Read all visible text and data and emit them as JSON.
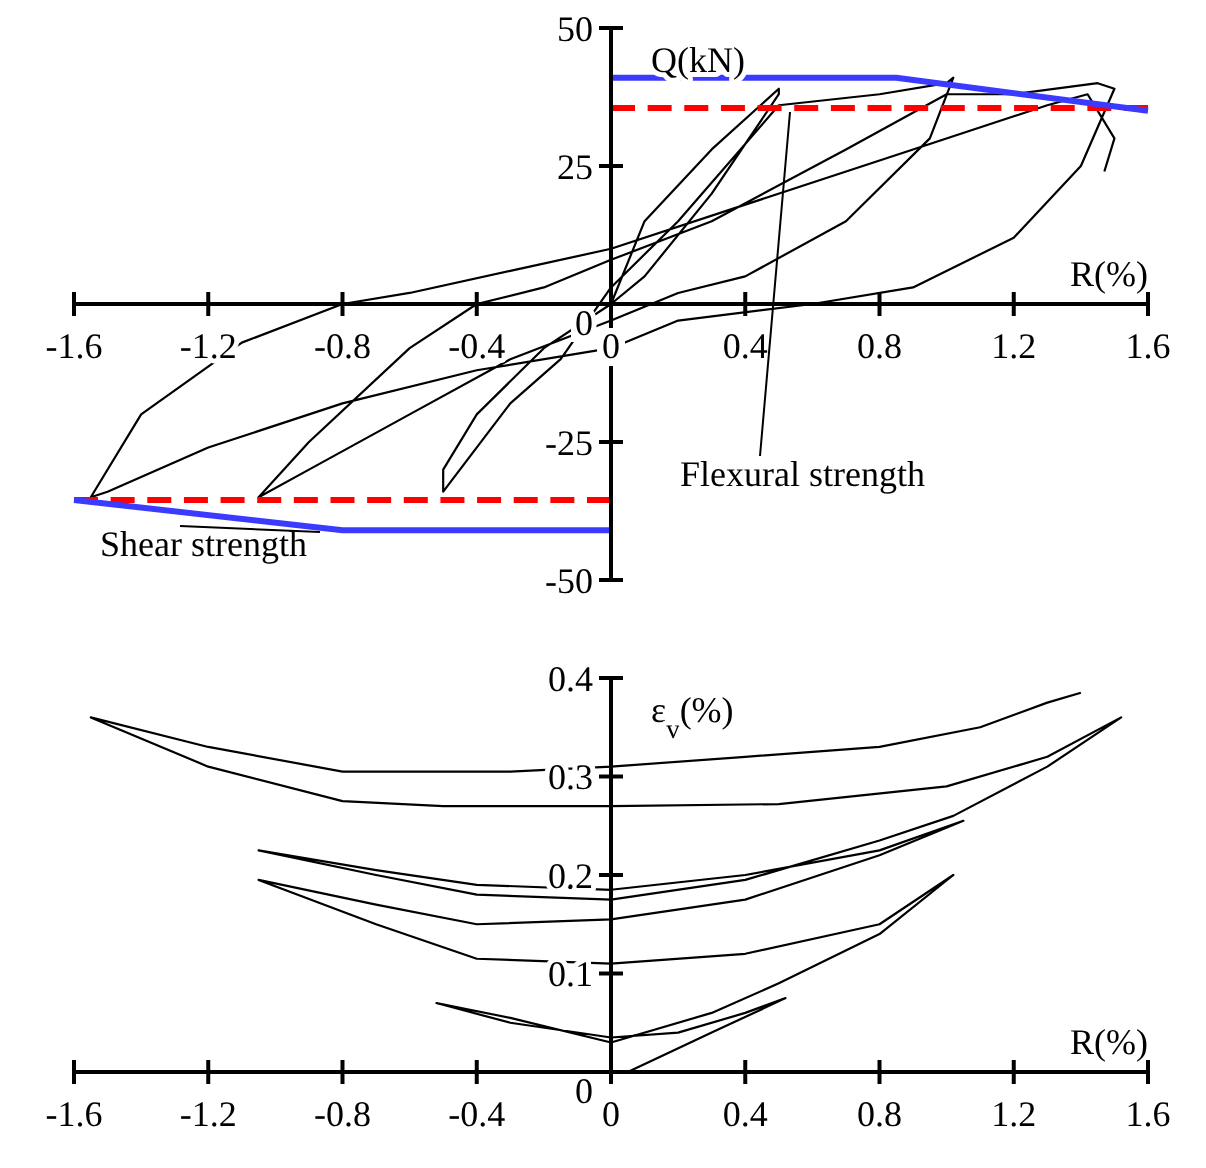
{
  "chart_data": [
    {
      "type": "line",
      "xlabel": "R(%)",
      "ylabel": "Q(kN)",
      "xlim": [
        -1.6,
        1.6
      ],
      "xticks": [
        -1.6,
        -1.2,
        -0.8,
        -0.4,
        0,
        0.4,
        0.8,
        1.2,
        1.6
      ],
      "ylim": [
        -50,
        50
      ],
      "yticks": [
        -50,
        -25,
        0,
        25,
        50
      ],
      "series": [
        {
          "color": "#000000",
          "x": [
            0,
            0.1,
            0.3,
            0.5,
            0.5,
            0.3,
            0.1,
            0,
            -0.2,
            -0.4,
            -0.5,
            -0.5,
            -0.3,
            -0.15,
            0,
            0.2,
            0.5,
            0.8,
            1.0,
            1.02,
            0.95,
            0.7,
            0.4,
            0.2,
            0,
            -0.3,
            -0.6,
            -0.9,
            -1.05,
            -0.9,
            -0.6,
            -0.4,
            -0.2,
            0,
            0.3,
            0.7,
            1.0,
            1.2,
            1.45,
            1.5,
            1.4,
            1.2,
            0.9,
            0.6,
            0.2,
            0,
            -0.4,
            -0.8,
            -1.2,
            -1.5,
            -1.55,
            -1.4,
            -1.1,
            -0.8,
            -0.6,
            -0.3,
            0,
            0.4,
            0.9,
            1.3,
            1.42,
            1.5,
            1.47
          ],
          "values": [
            0,
            15,
            28,
            39,
            38,
            20,
            5,
            0,
            -8,
            -20,
            -30,
            -34,
            -18,
            -10,
            3,
            15,
            36,
            38,
            40,
            41,
            30,
            15,
            5,
            2,
            -3,
            -10,
            -20,
            -30,
            -35,
            -25,
            -8,
            0,
            3,
            8,
            15,
            28,
            38,
            38,
            40,
            39,
            25,
            12,
            3,
            0,
            -3,
            -8,
            -12,
            -18,
            -26,
            -34,
            -35,
            -20,
            -7,
            0,
            2,
            6,
            10,
            18,
            28,
            36,
            38,
            30,
            24
          ]
        },
        {
          "name": "Flexural strength",
          "color": "#ff0000",
          "line_style": "dashed",
          "x": [
            0,
            1.6,
            null,
            -1.6,
            0
          ],
          "values": [
            35.5,
            35.5,
            null,
            -35.5,
            -35.5
          ]
        },
        {
          "name": "Shear strength",
          "color": "#3b3bff",
          "line_style": "solid",
          "x": [
            0,
            0.85,
            1.6,
            null,
            -1.6,
            -0.8,
            0
          ],
          "values": [
            41,
            41,
            35,
            null,
            -35.5,
            -41,
            -41
          ]
        }
      ]
    },
    {
      "type": "line",
      "xlabel": "R(%)",
      "ylabel": "ε$_{v}$(%)",
      "xlim": [
        -1.6,
        1.6
      ],
      "xticks": [
        -1.6,
        -1.2,
        -0.8,
        -0.4,
        0,
        0.4,
        0.8,
        1.2,
        1.6
      ],
      "ylim": [
        0,
        0.4
      ],
      "yticks": [
        0,
        0.1,
        0.2,
        0.3,
        0.4
      ],
      "series": [
        {
          "color": "#000000",
          "x": [
            0.05,
            0.3,
            0.52,
            0.4,
            0.2,
            0,
            -0.3,
            -0.52,
            -0.3,
            0,
            0.3,
            0.5,
            0.8,
            1.02,
            0.8,
            0.4,
            0,
            -0.4,
            -0.7,
            -1.05,
            -0.7,
            -0.4,
            0,
            0.4,
            0.8,
            1.05,
            0.8,
            0.4,
            0,
            -0.4,
            -0.7,
            -1.05,
            -0.7,
            -0.4,
            0,
            0.4,
            0.8,
            1.02,
            1.3,
            1.52,
            1.3,
            1.0,
            0.5,
            0,
            -0.5,
            -0.8,
            -1.2,
            -1.55,
            -1.2,
            -0.8,
            -0.3,
            0,
            0.4,
            0.8,
            1.1,
            1.3,
            1.4
          ],
          "values": [
            0,
            0.04,
            0.075,
            0.06,
            0.04,
            0.035,
            0.05,
            0.07,
            0.055,
            0.03,
            0.06,
            0.09,
            0.14,
            0.2,
            0.15,
            0.12,
            0.11,
            0.115,
            0.15,
            0.195,
            0.17,
            0.15,
            0.155,
            0.175,
            0.22,
            0.255,
            0.225,
            0.2,
            0.185,
            0.19,
            0.205,
            0.225,
            0.2,
            0.18,
            0.175,
            0.195,
            0.235,
            0.26,
            0.31,
            0.36,
            0.32,
            0.29,
            0.272,
            0.27,
            0.27,
            0.275,
            0.31,
            0.36,
            0.33,
            0.305,
            0.305,
            0.31,
            0.32,
            0.33,
            0.35,
            0.375,
            0.385
          ]
        }
      ]
    }
  ]
}
